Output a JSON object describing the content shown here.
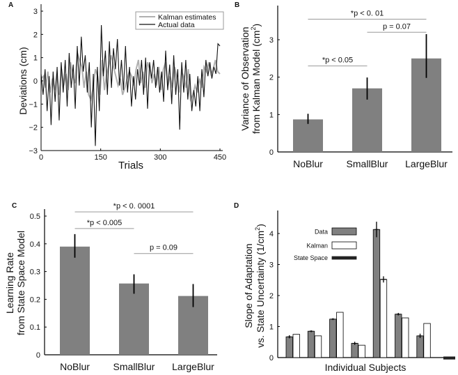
{
  "chart_data": [
    {
      "panel": "A",
      "type": "line",
      "xlabel": "Trials",
      "ylabel": "Deviations (cm)",
      "xlim": [
        0,
        450
      ],
      "ylim": [
        -3,
        3
      ],
      "xticks": [
        "0",
        "150",
        "300",
        "450"
      ],
      "yticks": [
        "3",
        "2",
        "1",
        "0",
        "−1",
        "−2",
        "−3"
      ],
      "legend": {
        "position": "top-right",
        "entries": [
          "Kalman estimates",
          "Actual data"
        ]
      },
      "series": [
        {
          "name": "Kalman estimates",
          "color": "#b0b0b0",
          "values": [
            0.1,
            0.2,
            -0.3,
            0.4,
            -0.5,
            0.1,
            -0.4,
            0.3,
            -0.6,
            0.5,
            -0.2,
            0.3,
            -0.4,
            0.8,
            0.2,
            -0.1,
            1.2,
            0.9,
            0.6,
            -0.3,
            0.4,
            -0.6,
            -0.8,
            -0.3,
            0.5,
            0.2,
            -0.6,
            0.9,
            -0.4,
            0.3,
            0.7,
            1.1,
            0.6,
            0.2,
            -0.2,
            0.1,
            -0.6,
            -0.3,
            0.1,
            0.4,
            0.2,
            -0.2,
            0.5,
            0.9,
            -0.1,
            0.4,
            -0.3,
            0.8,
            0.5,
            -0.1,
            0.3,
            -0.2,
            0.6,
            -0.4,
            0.5,
            0.8,
            -0.2,
            0.2,
            -0.3,
            0.6,
            0.1,
            -0.5,
            0.4,
            0.2,
            -0.3,
            0.5,
            -0.8,
            -0.6,
            -0.2,
            -0.5,
            0.1,
            -0.3,
            0.6,
            0.4,
            0.8,
            0.3,
            0.5,
            0.9,
            0.4,
            0.3
          ]
        },
        {
          "name": "Actual data",
          "color": "#111111",
          "values": [
            0.3,
            -0.6,
            0.5,
            -1.3,
            0.2,
            -1.9,
            0.4,
            -0.9,
            0.6,
            -1.7,
            0.8,
            -0.5,
            0.9,
            -1.1,
            1.2,
            -0.3,
            0.7,
            -1.2,
            1.5,
            -0.2,
            1.9,
            0.4,
            1.1,
            -0.5,
            0.8,
            -2.0,
            0.3,
            -2.8,
            0.6,
            -1.3,
            2.4,
            0.2,
            1.3,
            -0.6,
            1.7,
            -0.3,
            1.4,
            0.5,
            1.8,
            -0.2,
            0.9,
            -0.4,
            1.5,
            -0.5,
            0.6,
            -1.1,
            0.2,
            -0.8,
            0.5,
            -0.2,
            0.9,
            -0.6,
            1.0,
            -1.2,
            0.8,
            0.1,
            0.9,
            -0.3,
            0.6,
            -0.5,
            0.4,
            -0.9,
            1.3,
            -0.4,
            0.7,
            -1.0,
            1.1,
            -0.6,
            0.5,
            -2.1,
            0.8,
            -0.5,
            0.9,
            -0.8,
            0.3,
            -1.3,
            -0.4,
            -1.1,
            0.2,
            -1.3,
            0.5,
            -0.7,
            0.9,
            0.2,
            0.8,
            0.1,
            0.6,
            0.3,
            1.6,
            1.5
          ]
        }
      ]
    },
    {
      "panel": "B",
      "type": "bar",
      "ylabel_lines": [
        "Variance of Observation",
        "from Kalman Model (cm"
      ],
      "ylabel_sup": "2",
      "ylabel_end": ")",
      "ylim": [
        0,
        3.8
      ],
      "yticks": [
        "0",
        "1",
        "2",
        "3"
      ],
      "categories": [
        "NoBlur",
        "SmallBlur",
        "LargeBlur"
      ],
      "values": [
        0.87,
        1.7,
        2.5
      ],
      "errors": [
        [
          0.75,
          1.02
        ],
        [
          1.4,
          1.99
        ],
        [
          1.98,
          3.15
        ]
      ],
      "bar_color": "#808080",
      "significance": [
        {
          "from": 0,
          "to": 2,
          "label": "*p < 0. 01",
          "level": 3.55
        },
        {
          "from": 1,
          "to": 2,
          "label": "p = 0.07",
          "level": 3.2
        },
        {
          "from": 0,
          "to": 1,
          "label": "*p < 0.05",
          "level": 2.3
        }
      ]
    },
    {
      "panel": "C",
      "type": "bar",
      "ylabel_lines": [
        "Learning Rate",
        "from State Space Model"
      ],
      "ylim": [
        0,
        0.52
      ],
      "yticks": [
        "0",
        "0.1",
        "0.2",
        "0.3",
        "0.4",
        "0.5"
      ],
      "categories": [
        "NoBlur",
        "SmallBlur",
        "LargeBlur"
      ],
      "values": [
        0.39,
        0.257,
        0.212
      ],
      "errors": [
        [
          0.35,
          0.435
        ],
        [
          0.22,
          0.29
        ],
        [
          0.172,
          0.255
        ]
      ],
      "bar_color": "#808080",
      "significance": [
        {
          "from": 0,
          "to": 2,
          "label": "*p < 0. 0001",
          "level": 0.515
        },
        {
          "from": 0,
          "to": 1,
          "label": "*p < 0.005",
          "level": 0.455
        },
        {
          "from": 1,
          "to": 2,
          "label": "p = 0.09",
          "level": 0.365
        }
      ]
    },
    {
      "panel": "D",
      "type": "bar",
      "xlabel": "Individual Subjects",
      "ylabel_lines": [
        "Slope of Adaptation",
        "vs. State Uncertainty (1/cm"
      ],
      "ylabel_sup": "2",
      "ylabel_end": ")",
      "ylim": [
        -0.1,
        4.7
      ],
      "yticks": [
        "0",
        "1",
        "2",
        "3",
        "4"
      ],
      "legend": {
        "position": "top-left",
        "entries": [
          "Data",
          "Kalman",
          "State Space"
        ]
      },
      "series": [
        {
          "name": "Data",
          "color": "#808080",
          "values": [
            0.67,
            0.85,
            1.24,
            0.46,
            4.13,
            1.4,
            0.7
          ],
          "errors": [
            0.05,
            0.03,
            0.03,
            0.05,
            0.25,
            0.04,
            0.07
          ]
        },
        {
          "name": "Kalman",
          "color": "#ffffff",
          "values": [
            0.75,
            0.7,
            1.46,
            0.4,
            2.52,
            1.28,
            1.1
          ],
          "errors": [
            0,
            0,
            0,
            0,
            0.1,
            0,
            0
          ]
        },
        {
          "name": "State Space",
          "color": "#222222",
          "values": [
            -0.05
          ]
        }
      ]
    }
  ]
}
